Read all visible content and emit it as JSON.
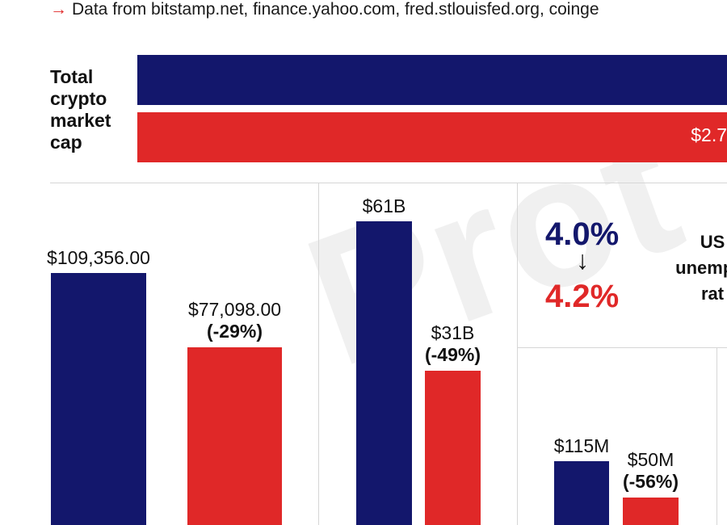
{
  "source": {
    "arrow": "→",
    "text": "Data from bitstamp.net, finance.yahoo.com, fred.stlouisfed.org, coinge"
  },
  "watermark": "Prot",
  "colors": {
    "before": "#13176c",
    "after": "#e02828"
  },
  "market_cap": {
    "label_lines": [
      "Total",
      "crypto",
      "market",
      "cap"
    ],
    "after_value_visible": "$2.7"
  },
  "unemployment": {
    "before": "4.0%",
    "arrow": "↓",
    "after": "4.2%",
    "label_lines": [
      "US",
      "unemplo",
      "rat"
    ]
  },
  "chart_data": [
    {
      "type": "bar",
      "series": [
        {
          "values": [
            109356.0
          ],
          "labels": [
            "$109,356.00"
          ]
        },
        {
          "values": [
            77098.0
          ],
          "labels": [
            "$77,098.00"
          ],
          "changes": [
            "(-29%)"
          ]
        }
      ]
    },
    {
      "type": "bar",
      "series": [
        {
          "values": [
            61
          ],
          "labels": [
            "$61B"
          ]
        },
        {
          "values": [
            31
          ],
          "labels": [
            "$31B"
          ],
          "changes": [
            "(-49%)"
          ]
        }
      ]
    },
    {
      "type": "bar",
      "series": [
        {
          "values": [
            115
          ],
          "labels": [
            "$115M"
          ]
        },
        {
          "values": [
            50
          ],
          "labels": [
            "$50M"
          ],
          "changes": [
            "(-56%)"
          ]
        }
      ]
    }
  ]
}
